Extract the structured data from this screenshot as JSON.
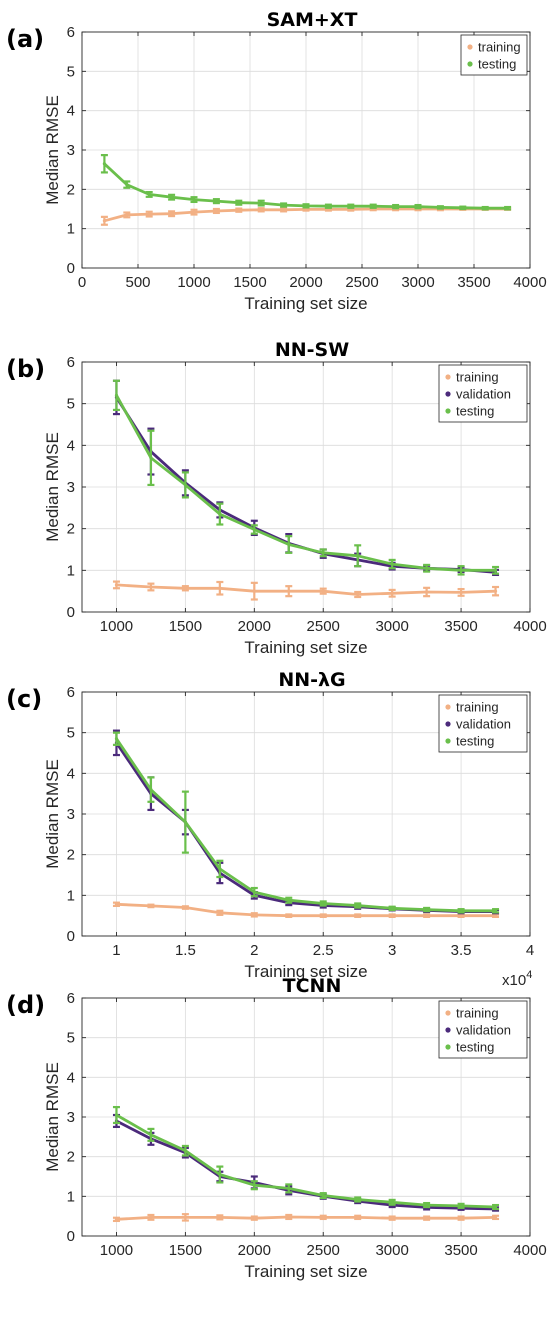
{
  "chart_data": [
    {
      "type": "line",
      "panel": "(a)",
      "title": "SAM+XT",
      "xlabel": "Training set size",
      "ylabel": "Median RMSE",
      "xlim": [
        0,
        4000
      ],
      "ylim": [
        0,
        6
      ],
      "xticks": [
        0,
        500,
        1000,
        1500,
        2000,
        2500,
        3000,
        3500,
        4000
      ],
      "xtick_labels": [
        "0",
        "500",
        "1000",
        "1500",
        "2000",
        "2500",
        "3000",
        "3500",
        "4000"
      ],
      "yticks": [
        0,
        1,
        2,
        3,
        4,
        5,
        6
      ],
      "ytick_labels": [
        "0",
        "1",
        "2",
        "3",
        "4",
        "5",
        "6"
      ],
      "x_exponent_label": "",
      "x_exponent_power": "",
      "grid": true,
      "legend": "top-right",
      "x": [
        200,
        400,
        600,
        800,
        1000,
        1200,
        1400,
        1600,
        1800,
        2000,
        2200,
        2400,
        2600,
        2800,
        3000,
        3200,
        3400,
        3600,
        3800
      ],
      "series": [
        {
          "name": "training",
          "color": "#f2b084",
          "values": [
            1.2,
            1.35,
            1.37,
            1.38,
            1.42,
            1.45,
            1.47,
            1.48,
            1.48,
            1.49,
            1.49,
            1.49,
            1.5,
            1.5,
            1.5,
            1.5,
            1.5,
            1.5,
            1.5
          ],
          "errors": [
            0.1,
            0.06,
            0.06,
            0.06,
            0.06,
            0.05,
            0.04,
            0.04,
            0.04,
            0.03,
            0.03,
            0.03,
            0.03,
            0.03,
            0.03,
            0.03,
            0.02,
            0.02,
            0.02
          ]
        },
        {
          "name": "testing",
          "color": "#6abf4b",
          "values": [
            2.65,
            2.12,
            1.87,
            1.8,
            1.74,
            1.7,
            1.66,
            1.65,
            1.6,
            1.58,
            1.57,
            1.57,
            1.57,
            1.56,
            1.56,
            1.54,
            1.53,
            1.52,
            1.52
          ],
          "errors": [
            0.22,
            0.08,
            0.06,
            0.06,
            0.06,
            0.05,
            0.05,
            0.06,
            0.04,
            0.04,
            0.04,
            0.04,
            0.04,
            0.04,
            0.04,
            0.03,
            0.03,
            0.03,
            0.03
          ]
        }
      ]
    },
    {
      "type": "line",
      "panel": "(b)",
      "title": "NN-SW",
      "xlabel": "Training set size",
      "ylabel": "Median RMSE",
      "xlim": [
        750,
        4000
      ],
      "ylim": [
        0,
        6
      ],
      "xticks": [
        1000,
        1500,
        2000,
        2500,
        3000,
        3500,
        4000
      ],
      "xtick_labels": [
        "1000",
        "1500",
        "2000",
        "2500",
        "3000",
        "3500",
        "4000"
      ],
      "yticks": [
        0,
        1,
        2,
        3,
        4,
        5,
        6
      ],
      "ytick_labels": [
        "0",
        "1",
        "2",
        "3",
        "4",
        "5",
        "6"
      ],
      "x_exponent_label": "",
      "x_exponent_power": "",
      "grid": true,
      "legend": "top-right",
      "x": [
        1000,
        1250,
        1500,
        1750,
        2000,
        2250,
        2500,
        2750,
        3000,
        3250,
        3500,
        3750
      ],
      "series": [
        {
          "name": "training",
          "color": "#f2b084",
          "values": [
            0.65,
            0.6,
            0.57,
            0.57,
            0.5,
            0.5,
            0.5,
            0.42,
            0.45,
            0.48,
            0.47,
            0.5
          ],
          "errors": [
            0.08,
            0.08,
            0.05,
            0.15,
            0.2,
            0.12,
            0.06,
            0.06,
            0.08,
            0.1,
            0.08,
            0.1
          ]
        },
        {
          "name": "validation",
          "color": "#4b2a7b",
          "values": [
            5.15,
            3.85,
            3.1,
            2.45,
            2.02,
            1.65,
            1.4,
            1.25,
            1.1,
            1.05,
            1.02,
            0.95
          ],
          "errors": [
            0.4,
            0.55,
            0.3,
            0.18,
            0.17,
            0.22,
            0.1,
            0.15,
            0.08,
            0.06,
            0.06,
            0.06
          ]
        },
        {
          "name": "testing",
          "color": "#6abf4b",
          "values": [
            5.2,
            3.7,
            3.05,
            2.35,
            1.98,
            1.62,
            1.42,
            1.35,
            1.15,
            1.05,
            1.0,
            1.0
          ],
          "errors": [
            0.35,
            0.65,
            0.3,
            0.25,
            0.1,
            0.2,
            0.08,
            0.25,
            0.1,
            0.08,
            0.1,
            0.08
          ]
        }
      ]
    },
    {
      "type": "line",
      "panel": "(c)",
      "title": "NN-λG",
      "xlabel": "Training set size",
      "ylabel": "Median RMSE",
      "xlim": [
        0.75,
        4
      ],
      "ylim": [
        0,
        6
      ],
      "xticks": [
        1,
        1.5,
        2,
        2.5,
        3,
        3.5,
        4
      ],
      "xtick_labels": [
        "1",
        "1.5",
        "2",
        "2.5",
        "3",
        "3.5",
        "4"
      ],
      "yticks": [
        0,
        1,
        2,
        3,
        4,
        5,
        6
      ],
      "ytick_labels": [
        "0",
        "1",
        "2",
        "3",
        "4",
        "5",
        "6"
      ],
      "x_exponent_label": "x10",
      "x_exponent_power": "4",
      "grid": true,
      "legend": "top-right",
      "x": [
        1,
        1.25,
        1.5,
        1.75,
        2,
        2.25,
        2.5,
        2.75,
        3,
        3.25,
        3.5,
        3.75
      ],
      "series": [
        {
          "name": "training",
          "color": "#f2b084",
          "values": [
            0.78,
            0.74,
            0.7,
            0.57,
            0.52,
            0.5,
            0.5,
            0.5,
            0.5,
            0.5,
            0.5,
            0.5
          ],
          "errors": [
            0.04,
            0.03,
            0.03,
            0.05,
            0.04,
            0.03,
            0.03,
            0.03,
            0.03,
            0.03,
            0.03,
            0.03
          ]
        },
        {
          "name": "validation",
          "color": "#4b2a7b",
          "values": [
            4.75,
            3.5,
            2.8,
            1.55,
            1.0,
            0.82,
            0.75,
            0.72,
            0.67,
            0.63,
            0.6,
            0.6
          ],
          "errors": [
            0.3,
            0.4,
            0.3,
            0.25,
            0.08,
            0.06,
            0.05,
            0.05,
            0.04,
            0.04,
            0.04,
            0.04
          ]
        },
        {
          "name": "testing",
          "color": "#6abf4b",
          "values": [
            4.85,
            3.6,
            2.8,
            1.65,
            1.08,
            0.88,
            0.8,
            0.75,
            0.68,
            0.65,
            0.62,
            0.62
          ],
          "errors": [
            0.15,
            0.3,
            0.75,
            0.2,
            0.1,
            0.06,
            0.05,
            0.05,
            0.04,
            0.04,
            0.04,
            0.04
          ]
        }
      ]
    },
    {
      "type": "line",
      "panel": "(d)",
      "title": "TCNN",
      "xlabel": "Training set size",
      "ylabel": "Median RMSE",
      "xlim": [
        750,
        4000
      ],
      "ylim": [
        0,
        6
      ],
      "xticks": [
        1000,
        1500,
        2000,
        2500,
        3000,
        3500,
        4000
      ],
      "xtick_labels": [
        "1000",
        "1500",
        "2000",
        "2500",
        "3000",
        "3500",
        "4000"
      ],
      "yticks": [
        0,
        1,
        2,
        3,
        4,
        5,
        6
      ],
      "ytick_labels": [
        "0",
        "1",
        "2",
        "3",
        "4",
        "5",
        "6"
      ],
      "x_exponent_label": "",
      "x_exponent_power": "",
      "grid": true,
      "legend": "top-right",
      "x": [
        1000,
        1250,
        1500,
        1750,
        2000,
        2250,
        2500,
        2750,
        3000,
        3250,
        3500,
        3750
      ],
      "series": [
        {
          "name": "training",
          "color": "#f2b084",
          "values": [
            0.42,
            0.47,
            0.47,
            0.47,
            0.45,
            0.48,
            0.47,
            0.47,
            0.45,
            0.45,
            0.45,
            0.47
          ],
          "errors": [
            0.04,
            0.06,
            0.08,
            0.05,
            0.04,
            0.05,
            0.04,
            0.04,
            0.04,
            0.04,
            0.04,
            0.04
          ]
        },
        {
          "name": "validation",
          "color": "#4b2a7b",
          "values": [
            2.9,
            2.45,
            2.1,
            1.5,
            1.35,
            1.15,
            1.0,
            0.88,
            0.78,
            0.72,
            0.7,
            0.68
          ],
          "errors": [
            0.15,
            0.15,
            0.12,
            0.12,
            0.15,
            0.1,
            0.06,
            0.05,
            0.05,
            0.05,
            0.04,
            0.04
          ]
        },
        {
          "name": "testing",
          "color": "#6abf4b",
          "values": [
            3.05,
            2.55,
            2.15,
            1.55,
            1.28,
            1.2,
            1.02,
            0.92,
            0.85,
            0.78,
            0.76,
            0.73
          ],
          "errors": [
            0.2,
            0.15,
            0.12,
            0.2,
            0.1,
            0.1,
            0.06,
            0.05,
            0.06,
            0.05,
            0.05,
            0.05
          ]
        }
      ]
    }
  ]
}
